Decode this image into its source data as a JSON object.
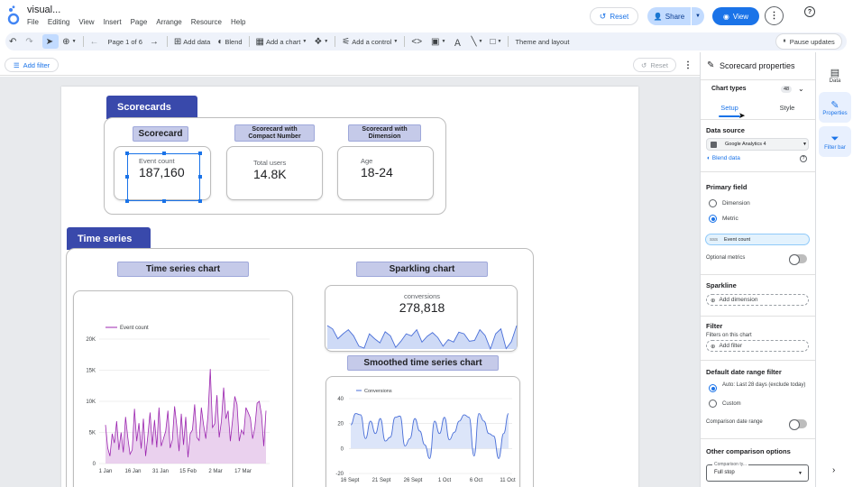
{
  "header": {
    "title": "visual...",
    "menu": [
      "File",
      "Editing",
      "View",
      "Insert",
      "Page",
      "Arrange",
      "Resource",
      "Help"
    ],
    "reset_label": "Reset",
    "share_label": "Share",
    "view_label": "View"
  },
  "toolbar": {
    "page_label": "Page 1 of 6",
    "add_data": "Add data",
    "blend": "Blend",
    "add_chart": "Add a chart",
    "add_control": "Add a control",
    "theme": "Theme and layout",
    "pause": "Pause updates"
  },
  "filterbar": {
    "add_filter": "Add filter",
    "reset": "Reset"
  },
  "report": {
    "scorecards_tab": "Scorecards",
    "scorecard_chip": "Scorecard",
    "compact_chip_1": "Scorecard with",
    "compact_chip_2": "Compact Number",
    "dimension_chip_1": "Scorecard with",
    "dimension_chip_2": "Dimension",
    "card1": {
      "label": "Event count",
      "value": "187,160"
    },
    "card2": {
      "label": "Total users",
      "value": "14.8K"
    },
    "card3": {
      "label": "Age",
      "value": "18-24"
    },
    "timeseries_tab": "Time series",
    "ts_chip": "Time series chart",
    "spark_chip": "Sparkling chart",
    "smooth_chip": "Smoothed time series chart",
    "spark": {
      "label": "conversions",
      "value": "278,818"
    }
  },
  "chart_data": [
    {
      "type": "area",
      "title": "Time series chart",
      "legend": "Event count",
      "x_ticks": [
        "1 Jan",
        "16 Jan",
        "31 Jan",
        "15 Feb",
        "2 Mar",
        "17 Mar"
      ],
      "y_ticks": [
        "0",
        "5K",
        "10K",
        "15K",
        "20K"
      ],
      "ylim": [
        0,
        20000
      ],
      "values": [
        6200,
        2500,
        1200,
        4800,
        3300,
        6800,
        2200,
        5000,
        1800,
        7500,
        4200,
        1500,
        2200,
        8800,
        3600,
        6500,
        2400,
        7200,
        1200,
        4500,
        8200,
        3000,
        7000,
        2600,
        9000,
        2800,
        4000,
        5200,
        8500,
        2500,
        3800,
        9200,
        6000,
        2000,
        8000,
        3000,
        7500,
        1000,
        4800,
        5400,
        9500,
        4200,
        3700,
        9000,
        6200,
        4000,
        7800,
        15200,
        5800,
        6400,
        11000,
        4200,
        6800,
        12200,
        7200,
        8500,
        3600,
        7000,
        10800,
        9500,
        3600,
        5400,
        4700,
        9000,
        8200,
        7300,
        4000,
        5800,
        9700,
        10000,
        7800,
        2800,
        8500
      ]
    },
    {
      "type": "area",
      "title": "Sparkling chart",
      "values": [
        8,
        7.2,
        4.8,
        6,
        7,
        5.5,
        3,
        2.5,
        6,
        4.8,
        3.8,
        6.5,
        5.5,
        2.7,
        4.2,
        6,
        5.5,
        7,
        4,
        5.4,
        6.3,
        5.1,
        3,
        4.6,
        4,
        6.4,
        6,
        4.2,
        4.4,
        7,
        5.6,
        2.3,
        6,
        7.2,
        2.4,
        4.1,
        8
      ]
    },
    {
      "type": "area",
      "title": "Smoothed time series chart",
      "legend": "Conversions",
      "x_ticks": [
        "16 Sept",
        "21 Sept",
        "26 Sept",
        "1 Oct",
        "6 Oct",
        "11 Oct"
      ],
      "y_ticks": [
        "-20",
        "0",
        "20",
        "40"
      ],
      "ylim": [
        -20,
        40
      ],
      "values": [
        19,
        28,
        27,
        8,
        22,
        12,
        24,
        6,
        9,
        25,
        26,
        2,
        8,
        24,
        14,
        3,
        -8,
        22,
        12,
        25,
        7,
        13,
        22,
        27,
        25,
        -6,
        28,
        22,
        12,
        10,
        -8,
        12,
        28
      ]
    }
  ],
  "panel": {
    "title": "Scorecard properties",
    "chart_types": "Chart types",
    "chart_types_count": "48",
    "tab_setup": "Setup",
    "tab_style": "Style",
    "data_source_h": "Data source",
    "data_source": "Google Analytics 4",
    "blend_data": "Blend data",
    "primary_field_h": "Primary field",
    "dimension": "Dimension",
    "metric": "Metric",
    "metric_badge": "SSS",
    "metric_value": "Event count",
    "optional_metrics": "Optional metrics",
    "sparkline_h": "Sparkline",
    "add_dimension": "Add dimension",
    "filter_h": "Filter",
    "filters_on_chart": "Filters on this chart",
    "add_filter": "Add filter",
    "date_range_h": "Default date range filter",
    "auto_range": "Auto: Last 28 days (exclude today)",
    "custom": "Custom",
    "comparison_date_range": "Comparison date range",
    "other_comparison_h": "Other comparison options",
    "comparison_type_label": "Comparison ty...",
    "comparison_type_value": "Full stop"
  },
  "rail": {
    "data": "Data",
    "properties": "Properties",
    "filter_bar": "Filter bar"
  },
  "colors": {
    "accent": "#1a73e8",
    "tab": "#3949ab",
    "chip": "#c5cae9",
    "series_purple": "#9c27b0",
    "series_blue": "#4a6fd8"
  }
}
